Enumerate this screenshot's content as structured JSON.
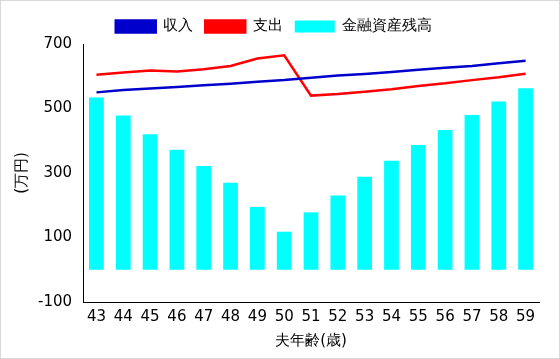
{
  "chart_data": {
    "type": "bar",
    "x_label": "夫年齢(歳)",
    "y_label": "(万円)",
    "categories": [
      "43",
      "44",
      "45",
      "46",
      "47",
      "48",
      "49",
      "50",
      "51",
      "52",
      "53",
      "54",
      "55",
      "56",
      "57",
      "58",
      "59"
    ],
    "series": [
      {
        "name": "金融資産残高",
        "type": "bar",
        "color": "#00ffff",
        "values": [
          534,
          478,
          420,
          372,
          322,
          270,
          195,
          118,
          178,
          230,
          288,
          338,
          387,
          433,
          480,
          522,
          563
        ]
      },
      {
        "name": "収入",
        "type": "line",
        "color": "#0000cc",
        "values": [
          550,
          557,
          562,
          567,
          572,
          577,
          583,
          588,
          595,
          602,
          607,
          613,
          620,
          626,
          632,
          640,
          648
        ]
      },
      {
        "name": "支出",
        "type": "line",
        "color": "#ff0000",
        "values": [
          605,
          612,
          618,
          615,
          622,
          632,
          655,
          665,
          540,
          545,
          552,
          560,
          570,
          578,
          588,
          597,
          608
        ]
      }
    ],
    "ylim": [
      -100,
      700
    ],
    "yticks": [
      -100,
      100,
      300,
      500,
      700
    ],
    "grid": false,
    "legend": "top"
  }
}
